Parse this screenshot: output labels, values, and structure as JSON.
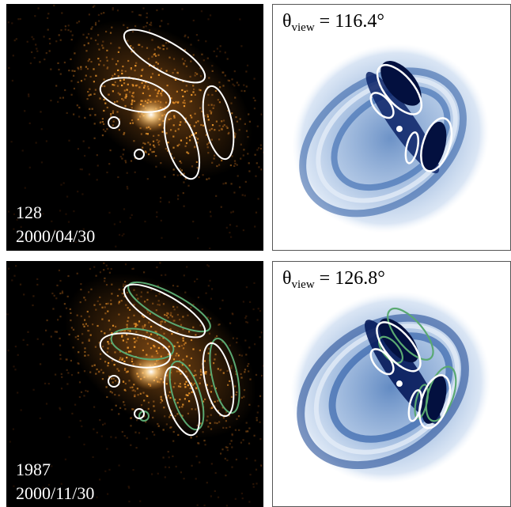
{
  "panels": [
    {
      "id": 128,
      "frame": "128",
      "date": "2000/04/30",
      "theta_symbol": "θ",
      "theta_sub": "view",
      "theta_eq": " = ",
      "theta_value": "116.4°",
      "show_green": false
    },
    {
      "id": 1987,
      "frame": "1987",
      "date": "2000/11/30",
      "theta_symbol": "θ",
      "theta_sub": "view",
      "theta_eq": " = ",
      "theta_value": "126.8°",
      "show_green": true
    }
  ],
  "colors": {
    "obs_background": "#000000",
    "obs_emission": "#f2a23a",
    "sim_dark": "#04155a",
    "sim_mid": "#3c6eb4",
    "sim_light": "#bcd1ec",
    "ellipse_primary": "#ffffff",
    "ellipse_secondary": "#5aa972"
  }
}
